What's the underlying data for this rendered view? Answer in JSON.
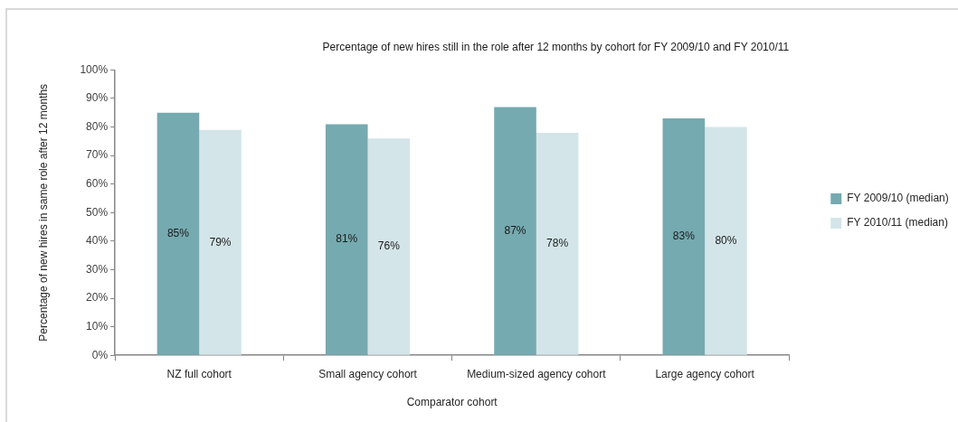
{
  "chart_data": {
    "type": "bar",
    "title": "Percentage of new hires still in the role after 12 months by cohort for FY 2009/10 and FY 2010/11",
    "xlabel": "Comparator cohort",
    "ylabel": "Percentage of new hires in same role after 12 months",
    "categories": [
      "NZ full cohort",
      "Small agency cohort",
      "Medium-sized agency cohort",
      "Large agency cohort"
    ],
    "series": [
      {
        "name": "FY 2009/10 (median)",
        "color": "#75aab0",
        "values": [
          85,
          81,
          87,
          83
        ],
        "value_labels": [
          "85%",
          "81%",
          "87%",
          "83%"
        ]
      },
      {
        "name": "FY 2010/11 (median)",
        "color": "#d3e5e8",
        "values": [
          79,
          76,
          78,
          80
        ],
        "value_labels": [
          "79%",
          "76%",
          "78%",
          "80%"
        ]
      }
    ],
    "ylim": [
      0,
      100
    ],
    "yticks": [
      {
        "value": 0,
        "label": "0%"
      },
      {
        "value": 10,
        "label": "10%"
      },
      {
        "value": 20,
        "label": "20%"
      },
      {
        "value": 30,
        "label": "30%"
      },
      {
        "value": 40,
        "label": "40%"
      },
      {
        "value": 50,
        "label": "50%"
      },
      {
        "value": 60,
        "label": "60%"
      },
      {
        "value": 70,
        "label": "70%"
      },
      {
        "value": 80,
        "label": "80%"
      },
      {
        "value": 90,
        "label": "90%"
      },
      {
        "value": 100,
        "label": "100%"
      }
    ],
    "grid": false,
    "legend": "right"
  }
}
